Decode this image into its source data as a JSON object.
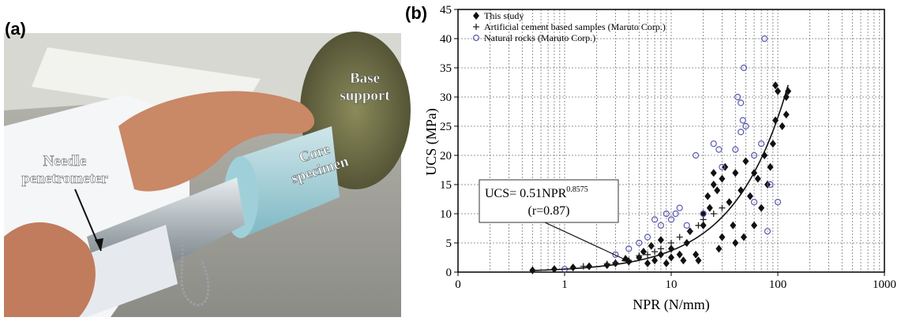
{
  "photo": {
    "label": "(a)",
    "annotations": [
      {
        "lines": [
          "Base",
          "support"
        ]
      },
      {
        "lines": [
          "Core",
          "specimen"
        ]
      },
      {
        "lines": [
          "Needle",
          "penetrometer"
        ]
      }
    ]
  },
  "chart_data": {
    "type": "scatter",
    "panel_label": "(b)",
    "xlabel": "NPR (N/mm)",
    "ylabel": "UCS (MPa)",
    "xscale": "log",
    "xlim": [
      0.1,
      1000
    ],
    "xticks": [
      {
        "value": 0.1,
        "label": "0"
      },
      1,
      10,
      100,
      1000
    ],
    "ylim": [
      0,
      45
    ],
    "yticks": [
      0,
      5,
      10,
      15,
      20,
      25,
      30,
      35,
      40,
      45
    ],
    "grid": true,
    "minor_grid": true,
    "legend": "upper left",
    "series": [
      {
        "name": "This study",
        "color": "#111111",
        "marker": "diamond",
        "x": [
          0.5,
          0.8,
          1.2,
          1.7,
          2.5,
          3,
          4,
          5,
          5.5,
          6,
          6.5,
          7,
          8,
          8,
          9,
          10,
          10,
          12,
          13,
          14,
          15,
          17,
          18,
          20,
          20,
          22,
          23,
          25,
          25,
          27,
          28,
          30,
          30,
          32,
          35,
          38,
          40,
          40,
          45,
          48,
          50,
          55,
          60,
          60,
          65,
          70,
          75,
          80,
          85,
          90,
          95,
          95,
          100,
          110,
          120,
          125,
          120
        ],
        "values": [
          0.3,
          0.5,
          0.8,
          1,
          1.2,
          1.5,
          1.8,
          2.5,
          3.5,
          1.5,
          4.5,
          2,
          3,
          5.5,
          1.5,
          2.5,
          4,
          3,
          2,
          5,
          7,
          3,
          2,
          10,
          8,
          13,
          11,
          15,
          17,
          14,
          4,
          16,
          6,
          18,
          12,
          8,
          5,
          17,
          14,
          6,
          19,
          13,
          8,
          17,
          16,
          11,
          20,
          15,
          18,
          22,
          26,
          32,
          31,
          25,
          30,
          31,
          27
        ]
      },
      {
        "name": "Artificial cement based samples (Maruto Corp.)",
        "color": "#222222",
        "marker": "plus",
        "x": [
          1.5,
          2.5,
          3,
          4,
          5,
          6,
          7,
          8,
          10,
          12,
          15,
          18,
          20,
          25,
          30
        ],
        "values": [
          1,
          1.4,
          1.6,
          2,
          2.8,
          3,
          3.5,
          4,
          5,
          6,
          7,
          8,
          9,
          10,
          11
        ]
      },
      {
        "name": "Natural rocks (Maruto Corp.)",
        "color": "#5a5ab4",
        "marker": "circle",
        "x": [
          1,
          3,
          4,
          5,
          6,
          7,
          8,
          9,
          10,
          11,
          12,
          14,
          17,
          20,
          25,
          28,
          30,
          40,
          42,
          45,
          47,
          48,
          50,
          45,
          60,
          70,
          75,
          80,
          85,
          100,
          60
        ],
        "values": [
          0.5,
          3,
          4,
          5,
          6,
          9,
          8,
          10,
          9,
          10,
          11,
          8,
          20,
          10,
          22,
          21,
          18,
          21,
          30,
          29,
          26,
          35,
          25,
          24,
          20,
          22,
          40,
          7,
          15,
          12,
          12
        ]
      }
    ],
    "fit": {
      "label": "UCS= 0.51NPR",
      "exponent_label": "0.8575",
      "r_label": "(r=0.87)",
      "coefficient": 0.51,
      "exponent": 0.8575,
      "xlim": [
        0.5,
        125
      ]
    }
  }
}
